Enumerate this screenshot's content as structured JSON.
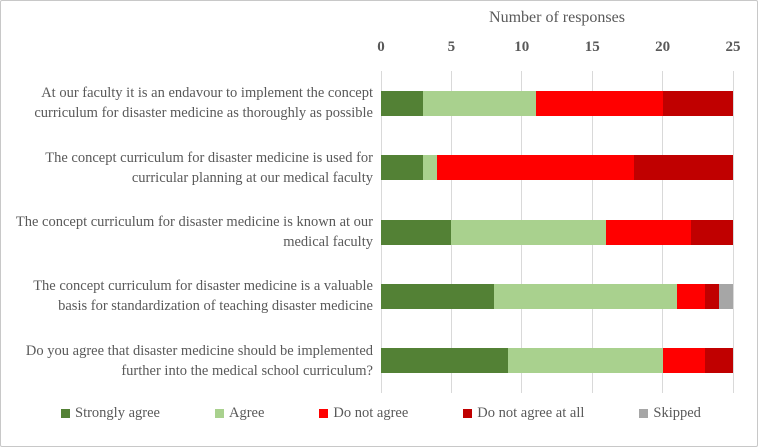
{
  "chart_data": {
    "type": "bar",
    "orientation": "horizontal-stacked",
    "axis_title": "Number of responses",
    "xlim": [
      0,
      25
    ],
    "xticks": [
      0,
      5,
      10,
      15,
      20,
      25
    ],
    "grid": true,
    "legend_position": "bottom",
    "categories": [
      "At our faculty it is an endavour to implement the concept curriculum for disaster medicine as thoroughly as possible",
      "The concept curriculum for disaster medicine is used for curricular planning at our medical faculty",
      "The concept curriculum for disaster medicine is known at our medical faculty",
      "The concept curriculum for disaster medicine is a valuable basis for standardization of teaching disaster medicine",
      "Do you agree that disaster medicine should be implemented further into the medical school curriculum?"
    ],
    "series": [
      {
        "name": "Strongly agree",
        "color": "#538135",
        "values": [
          3,
          3,
          5,
          8,
          9
        ]
      },
      {
        "name": "Agree",
        "color": "#a9d18e",
        "values": [
          8,
          1,
          11,
          13,
          11
        ]
      },
      {
        "name": "Do not agree",
        "color": "#ff0000",
        "values": [
          9,
          14,
          6,
          2,
          3
        ]
      },
      {
        "name": "Do not agree at all",
        "color": "#c00000",
        "values": [
          5,
          7,
          3,
          1,
          2
        ]
      },
      {
        "name": "Skipped",
        "color": "#a6a6a6",
        "values": [
          0,
          0,
          0,
          1,
          0
        ]
      }
    ]
  },
  "colors": {
    "text": "#595959",
    "gridline": "#d9d9d9",
    "frame_border": "#c8c8c8",
    "background": "#ffffff"
  }
}
